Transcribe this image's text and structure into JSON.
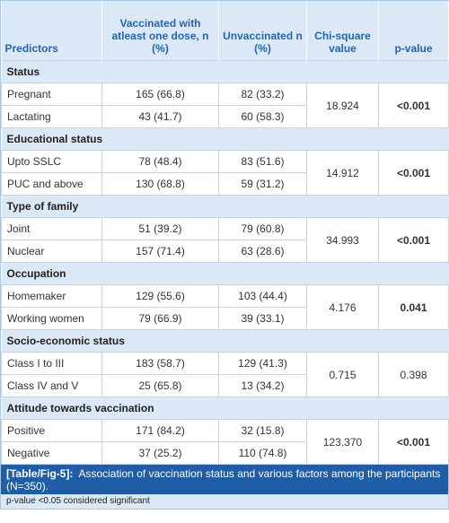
{
  "table": {
    "header": [
      "Predictors",
      "Vaccinated with atleast one dose, n (%)",
      "Unvaccinated n (%)",
      "Chi-square value",
      "p-value"
    ],
    "sections": [
      {
        "title": "Status",
        "rows": [
          [
            "Pregnant",
            "165 (66.8)",
            "82 (33.2)"
          ],
          [
            "Lactating",
            "43 (41.7)",
            "60 (58.3)"
          ]
        ],
        "chi_square": "18.924",
        "p_value": "<0.001",
        "bold": true
      },
      {
        "title": "Educational status",
        "rows": [
          [
            "Upto SSLC",
            "78 (48.4)",
            "83 (51.6)"
          ],
          [
            "PUC and above",
            "130 (68.8)",
            "59 (31.2)"
          ]
        ],
        "chi_square": "14.912",
        "p_value": "<0.001",
        "bold": true
      },
      {
        "title": "Type of family",
        "rows": [
          [
            "Joint",
            "51 (39.2)",
            "79 (60.8)"
          ],
          [
            "Nuclear",
            "157 (71.4)",
            "63 (28.6)"
          ]
        ],
        "chi_square": "34.993",
        "p_value": "<0.001",
        "bold": true
      },
      {
        "title": "Occupation",
        "rows": [
          [
            "Homemaker",
            "129 (55.6)",
            "103 (44.4)"
          ],
          [
            "Working women",
            "79 (66.9)",
            "39 (33.1)"
          ]
        ],
        "chi_square": "4.176",
        "p_value": "0.041",
        "bold": true
      },
      {
        "title": "Socio-economic status",
        "rows": [
          [
            "Class I to III",
            "183 (58.7)",
            "129 (41.3)"
          ],
          [
            "Class IV and V",
            "25 (65.8)",
            "13 (34.2)"
          ]
        ],
        "chi_square": "0.715",
        "p_value": "0.398",
        "bold": false
      },
      {
        "title": "Attitude towards vaccination",
        "rows": [
          [
            "Positive",
            "171 (84.2)",
            "32 (15.8)"
          ],
          [
            "Negative",
            "37 (25.2)",
            "110 (74.8)"
          ]
        ],
        "chi_square": "123.370",
        "p_value": "<0.001",
        "bold": true
      }
    ]
  },
  "caption": {
    "label": "[Table/Fig-5]:",
    "text": "Association of vaccination status and various factors among the participants (N=350)."
  },
  "footnote": "p-value <0.05 considered significant"
}
